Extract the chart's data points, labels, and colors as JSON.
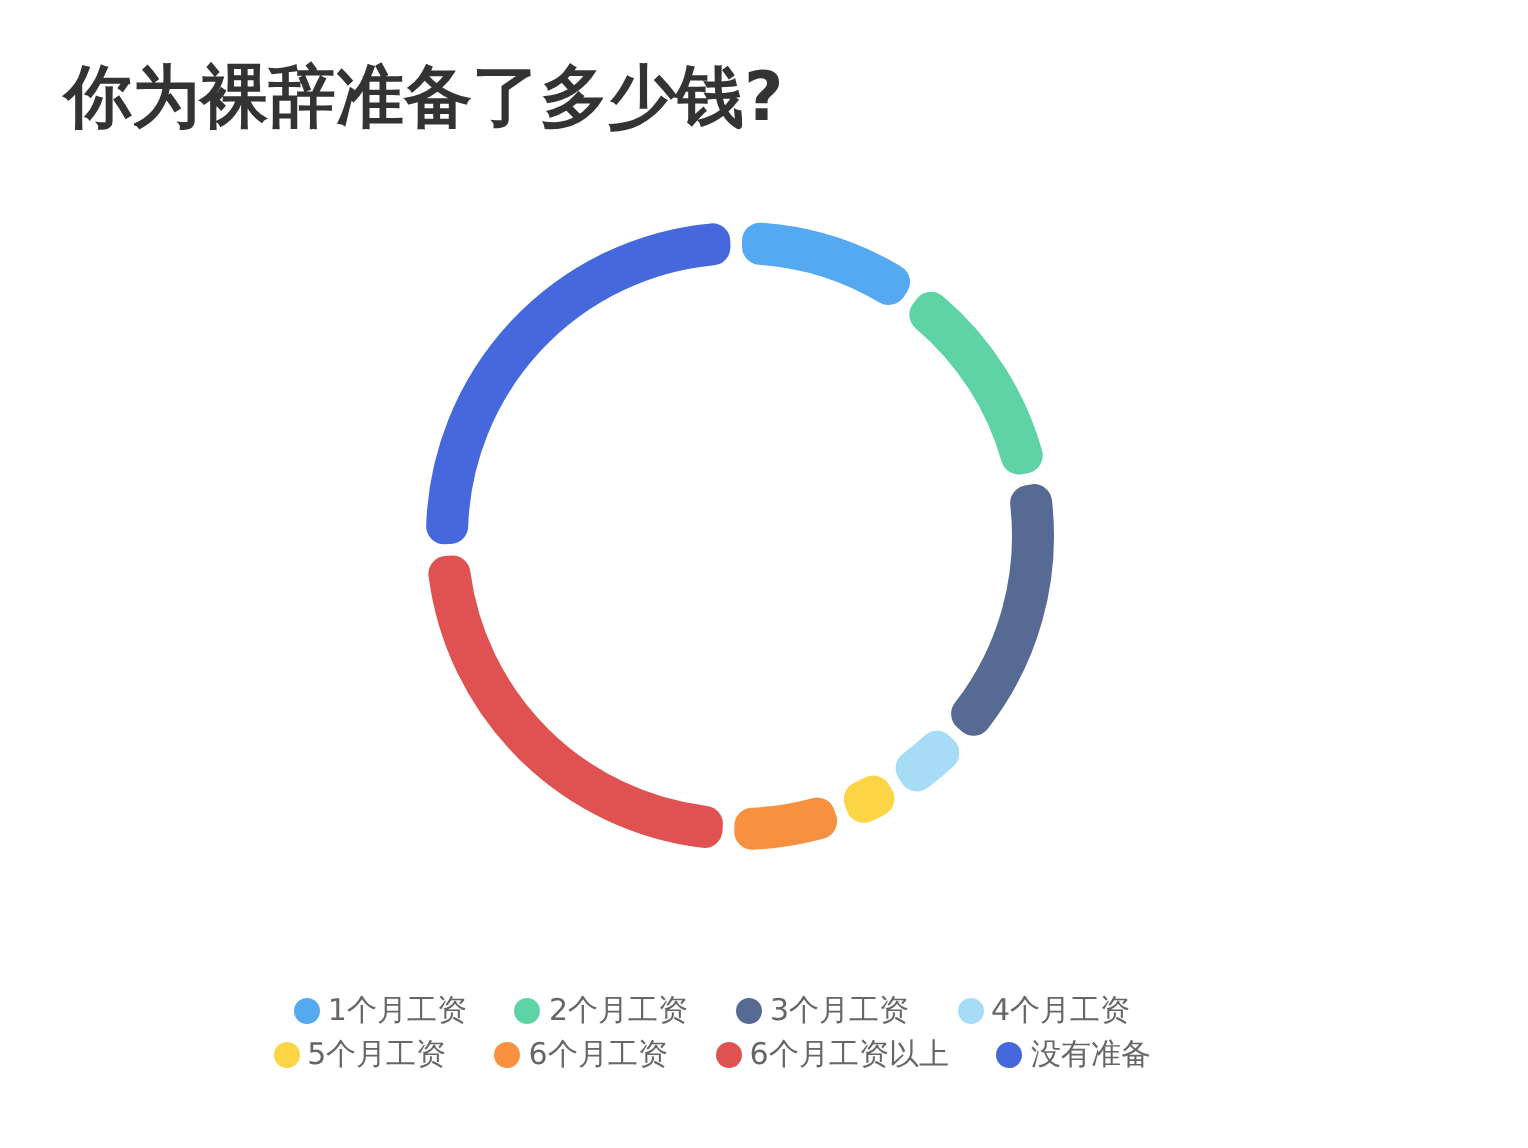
{
  "chart_data": {
    "type": "donut",
    "title": "你为裸辞准备了多少钱?",
    "categories": [
      "1个月工资",
      "2个月工资",
      "3个月工资",
      "4个月工资",
      "5个月工资",
      "6个月工资",
      "6个月工资以上",
      "没有准备"
    ],
    "values": [
      10,
      12,
      15,
      4,
      3,
      6,
      24,
      26
    ],
    "colors": [
      "#54a9f0",
      "#5ed4a6",
      "#566a93",
      "#a6dcf5",
      "#fbd545",
      "#f8913f",
      "#e05252",
      "#4568dc"
    ],
    "legend": "bottom"
  }
}
